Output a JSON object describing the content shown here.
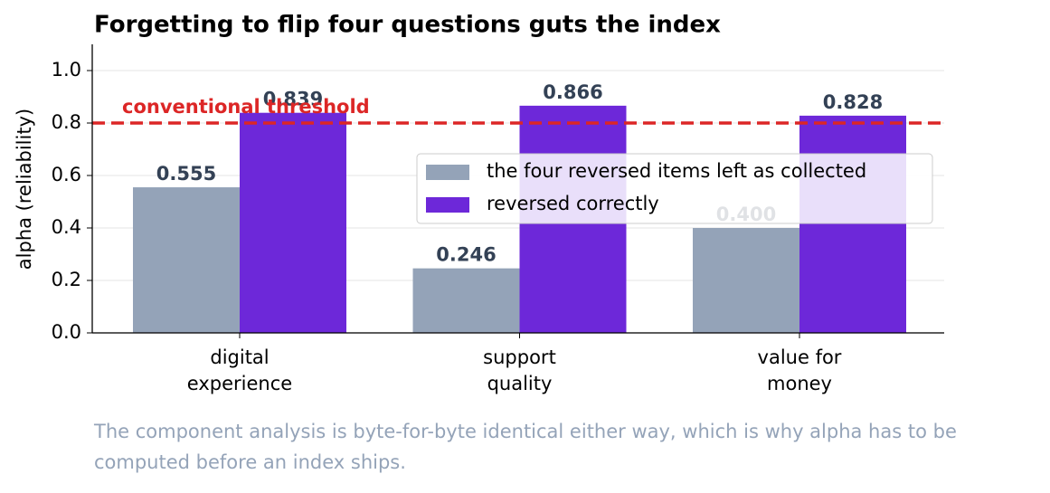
{
  "chart_data": {
    "type": "bar",
    "title": "Forgetting to flip four questions guts the index",
    "ylabel": "alpha (reliability)",
    "categories": [
      "digital\nexperience",
      "support\nquality",
      "value for\nmoney"
    ],
    "series": [
      {
        "name": "the four reversed items left as collected",
        "color": "#94a3b8",
        "values": [
          0.555,
          0.246,
          0.4
        ],
        "value_labels": [
          "0.555",
          "0.246",
          "0.400"
        ]
      },
      {
        "name": "reversed correctly",
        "color": "#6d28d9",
        "values": [
          0.839,
          0.866,
          0.828
        ],
        "value_labels": [
          "0.839",
          "0.866",
          "0.828"
        ]
      }
    ],
    "ylim": [
      0,
      1.1
    ],
    "yticks": [
      {
        "value": 0,
        "label": "0.0"
      },
      {
        "value": 0.2,
        "label": "0.2"
      },
      {
        "value": 0.4,
        "label": "0.4"
      },
      {
        "value": 0.6,
        "label": "0.6"
      },
      {
        "value": 0.8,
        "label": "0.8"
      },
      {
        "value": 1,
        "label": "1.0"
      }
    ],
    "grid": true,
    "threshold": {
      "value": 0.8,
      "label": "conventional threshold",
      "color": "#dc2626"
    },
    "legend": "center right",
    "caption": [
      "The component analysis is byte-for-byte identical either way, which is why alpha has to be",
      "computed before an index ships."
    ]
  }
}
